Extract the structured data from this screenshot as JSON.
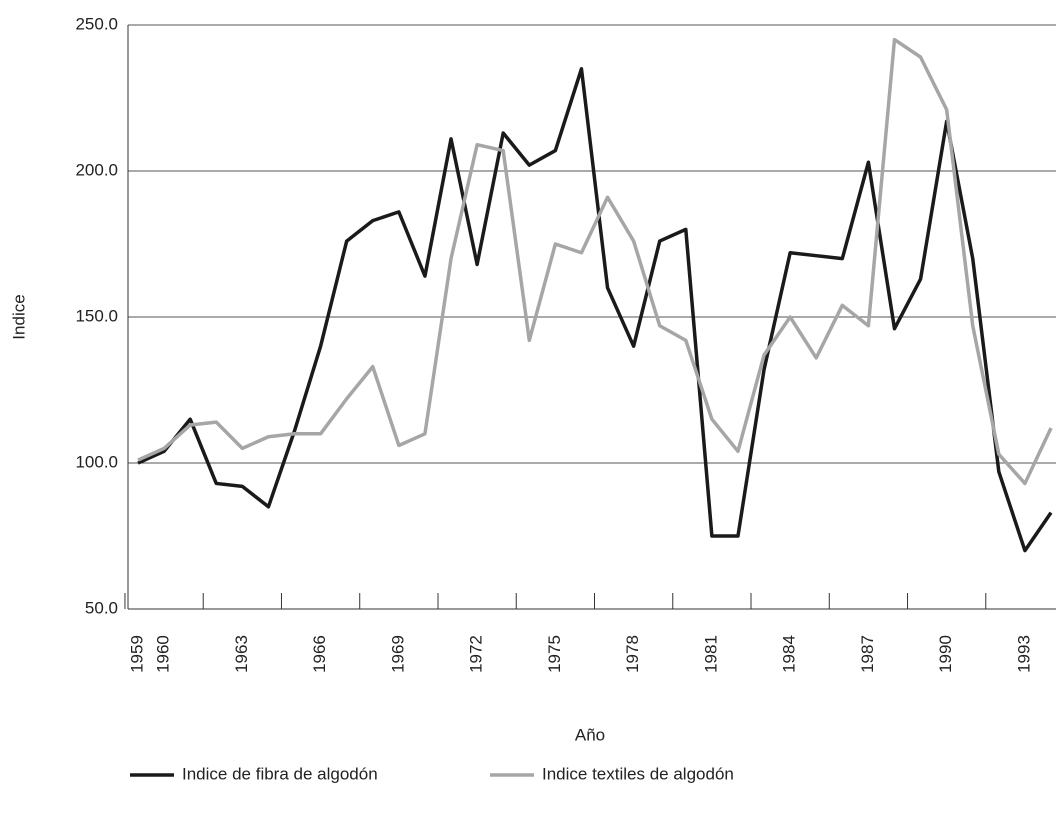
{
  "chart_data": {
    "type": "line",
    "x_label": "Año",
    "y_label": "Indice",
    "categories": [
      "1959",
      "1960",
      null,
      null,
      "1963",
      null,
      null,
      "1966",
      null,
      null,
      "1969",
      null,
      null,
      "1972",
      null,
      null,
      "1975",
      null,
      null,
      "1978",
      null,
      null,
      "1981",
      null,
      null,
      "1984",
      null,
      null,
      "1987",
      null,
      null,
      "1990",
      null,
      null,
      "1993",
      null
    ],
    "series": [
      {
        "name": "Indice de fibra de algodón",
        "color": "#1a1a1a",
        "values": [
          100,
          104,
          115,
          93,
          92,
          85,
          111,
          140,
          176,
          183,
          186,
          164,
          211,
          168,
          213,
          202,
          207,
          235,
          160,
          140,
          176,
          180,
          75,
          75,
          132,
          172,
          171,
          170,
          203,
          146,
          163,
          217,
          170,
          97,
          70,
          83
        ]
      },
      {
        "name": "Indice textiles de algodón",
        "color": "#a6a6a6",
        "values": [
          101,
          105,
          113,
          114,
          105,
          109,
          110,
          110,
          122,
          133,
          106,
          110,
          170,
          209,
          207,
          142,
          175,
          172,
          191,
          176,
          147,
          142,
          115,
          104,
          137,
          150,
          136,
          154,
          147,
          245,
          239,
          221,
          147,
          103,
          93,
          112
        ]
      }
    ],
    "ylim": [
      50,
      250
    ],
    "yticks": [
      {
        "value": 50,
        "label": "50.0"
      },
      {
        "value": 100,
        "label": "100.0"
      },
      {
        "value": 150,
        "label": "150.0"
      },
      {
        "value": 200,
        "label": "200.0"
      },
      {
        "value": 250,
        "label": "250.0"
      }
    ],
    "grid": true
  }
}
